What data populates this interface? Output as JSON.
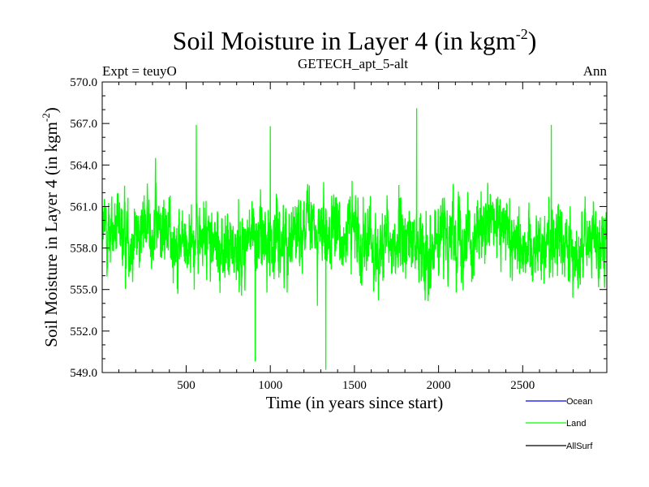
{
  "chart_data": {
    "type": "line",
    "title": "Soil Moisture in Layer 4 (in kgm",
    "title_sup": "-2",
    "title_end": ")",
    "subtitle_left": "Expt = teuyO",
    "subtitle_center": "GETECH_apt_5-alt",
    "subtitle_right": "Ann",
    "xlabel": "Time (in years since start)",
    "ylabel": "Soil Moisture in Layer 4 (in kgm",
    "ylabel_sup": "-2",
    "ylabel_end": ")",
    "xlim": [
      1,
      3000
    ],
    "ylim": [
      549.0,
      570.0
    ],
    "xticks": [
      500,
      1000,
      1500,
      2000,
      2500
    ],
    "yticks": [
      "549.0",
      "552.0",
      "555.0",
      "558.0",
      "561.0",
      "564.0",
      "567.0",
      "570.0"
    ],
    "ytick_values": [
      549,
      552,
      555,
      558,
      561,
      564,
      567,
      570
    ],
    "series": [
      {
        "name": "Ocean",
        "color": "#0000ff",
        "values": []
      },
      {
        "name": "Land",
        "color": "#00ff00",
        "mean": 558.7,
        "min": 549.2,
        "max": 568.1,
        "notable_points": [
          {
            "x": 1870,
            "y": 568.1
          },
          {
            "x": 1330,
            "y": 549.2
          },
          {
            "x": 910,
            "y": 549.8
          },
          {
            "x": 560,
            "y": 566.9
          },
          {
            "x": 2670,
            "y": 566.9
          },
          {
            "x": 1000,
            "y": 566.8
          }
        ]
      },
      {
        "name": "AllSurf",
        "color": "#000000",
        "values": []
      }
    ]
  }
}
